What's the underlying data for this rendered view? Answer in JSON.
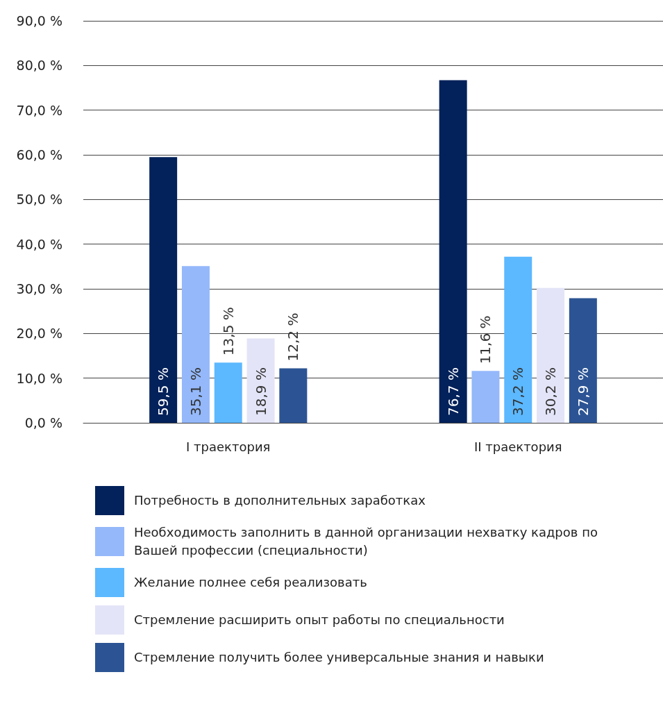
{
  "chart_data": {
    "type": "bar",
    "categories": [
      "I траектория",
      "II траектория"
    ],
    "series": [
      {
        "name": "Потребность в дополнительных заработках",
        "color": "#03215a",
        "values": [
          59.5,
          76.7
        ],
        "value_labels": [
          "59,5 %",
          "76,7 %"
        ]
      },
      {
        "name": "Необходимость заполнить в данной организации нехватку кадров по Вашей профессии (специальности)",
        "color": "#94b8fa",
        "values": [
          35.1,
          11.6
        ],
        "value_labels": [
          "35,1 %",
          "11,6 %"
        ]
      },
      {
        "name": "Желание полнее себя реализовать",
        "color": "#5cb8ff",
        "values": [
          13.5,
          37.2
        ],
        "value_labels": [
          "13,5 %",
          "37,2 %"
        ]
      },
      {
        "name": "Стремление расширить опыт работы по специальности",
        "color": "#e3e4f7",
        "values": [
          18.9,
          30.2
        ],
        "value_labels": [
          "18,9 %",
          "30,2 %"
        ]
      },
      {
        "name": "Стремление получить более универсальные знания и навыки",
        "color": "#2c5494",
        "values": [
          12.2,
          27.9
        ],
        "value_labels": [
          "12,2 %",
          "27,9 %"
        ]
      }
    ],
    "ylim": [
      0,
      90
    ],
    "yticks": [
      {
        "value": 0,
        "label": "0,0 %"
      },
      {
        "value": 10,
        "label": "10,0 %"
      },
      {
        "value": 20,
        "label": "20,0 %"
      },
      {
        "value": 30,
        "label": "30,0 %"
      },
      {
        "value": 40,
        "label": "40,0 %"
      },
      {
        "value": 50,
        "label": "50,0 %"
      },
      {
        "value": 60,
        "label": "60,0 %"
      },
      {
        "value": 70,
        "label": "70,0 %"
      },
      {
        "value": 80,
        "label": "80,0 %"
      },
      {
        "value": 90,
        "label": "90,0 %"
      }
    ],
    "grid": "y",
    "legend": "bottom"
  }
}
